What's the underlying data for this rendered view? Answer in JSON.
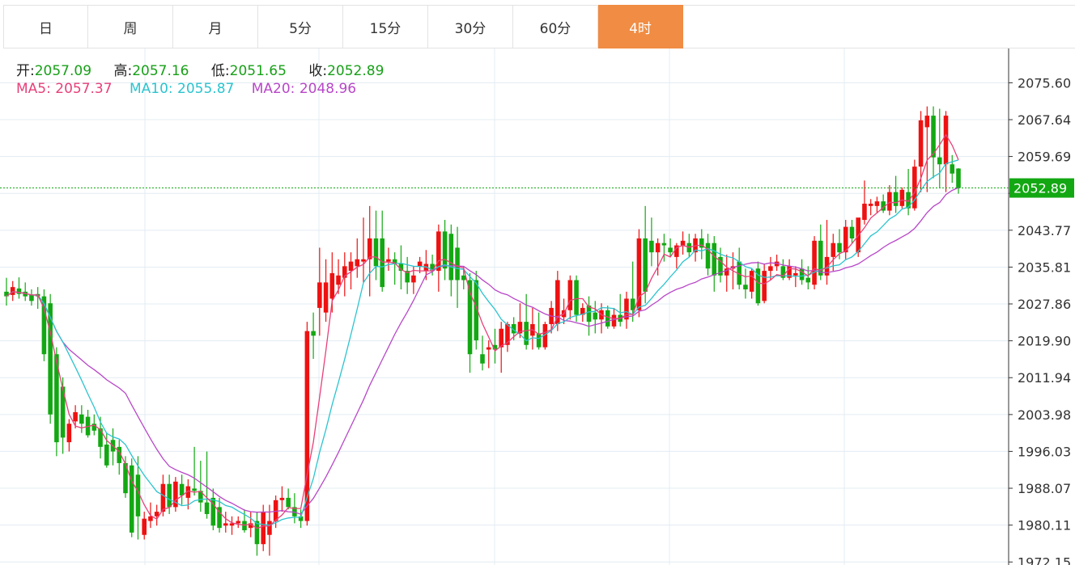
{
  "tabs": [
    {
      "label": "日",
      "active": false
    },
    {
      "label": "周",
      "active": false
    },
    {
      "label": "月",
      "active": false
    },
    {
      "label": "5分",
      "active": false
    },
    {
      "label": "15分",
      "active": false
    },
    {
      "label": "30分",
      "active": false
    },
    {
      "label": "60分",
      "active": false
    },
    {
      "label": "4时",
      "active": true
    }
  ],
  "ohlc": {
    "open_label": "开:",
    "open": "2057.09",
    "high_label": "高:",
    "high": "2057.16",
    "low_label": "低:",
    "low": "2051.65",
    "close_label": "收:",
    "close": "2052.89"
  },
  "ma": {
    "ma5_label": "MA5:",
    "ma5": "2057.37",
    "ma10_label": "MA10:",
    "ma10": "2055.87",
    "ma20_label": "MA20:",
    "ma20": "2048.96"
  },
  "colors": {
    "up": "#ee1111",
    "down": "#13a813",
    "ma5": "#e8407a",
    "ma10": "#2cc4cf",
    "ma20": "#b847c8",
    "tab_active": "#f08c43",
    "price_tag": "#13a813",
    "grid": "#e3ecf3"
  },
  "chart_data": {
    "type": "candlestick",
    "y_ticks": [
      2075.6,
      2067.64,
      2059.69,
      2051.73,
      2043.77,
      2035.81,
      2027.86,
      2019.9,
      2011.94,
      2003.98,
      1996.03,
      1988.07,
      1980.11,
      1972.15
    ],
    "y_tick_labels": [
      "2075.60",
      "2067.64",
      "2059.69",
      "",
      "2043.77",
      "2035.81",
      "2027.86",
      "2019.90",
      "2011.94",
      "2003.98",
      "1996.03",
      "1988.07",
      "1980.11",
      "1972.15"
    ],
    "ylim": [
      1971.5,
      2083.0
    ],
    "current_price": 2052.89,
    "current_price_label": "2052.89",
    "candles": [
      {
        "o": 2030.5,
        "h": 2033.5,
        "l": 2027.5,
        "c": 2029.5
      },
      {
        "o": 2029.8,
        "h": 2032.8,
        "l": 2028.5,
        "c": 2031.5
      },
      {
        "o": 2031.2,
        "h": 2033.6,
        "l": 2029.0,
        "c": 2030.0
      },
      {
        "o": 2030.5,
        "h": 2032.5,
        "l": 2028.5,
        "c": 2029.5
      },
      {
        "o": 2029.8,
        "h": 2031.0,
        "l": 2027.5,
        "c": 2028.5
      },
      {
        "o": 2030.0,
        "h": 2031.5,
        "l": 2026.8,
        "c": 2029.5
      },
      {
        "o": 2029.5,
        "h": 2031.0,
        "l": 2015.5,
        "c": 2017.0
      },
      {
        "o": 2028.0,
        "h": 2030.0,
        "l": 2002.0,
        "c": 2004.0
      },
      {
        "o": 2017.0,
        "h": 2018.5,
        "l": 1995.0,
        "c": 1998.0
      },
      {
        "o": 2010.0,
        "h": 2012.0,
        "l": 1995.5,
        "c": 1999.0
      },
      {
        "o": 1998.0,
        "h": 2003.0,
        "l": 1996.0,
        "c": 2002.0
      },
      {
        "o": 2002.5,
        "h": 2006.0,
        "l": 2001.0,
        "c": 2004.5
      },
      {
        "o": 2004.0,
        "h": 2006.0,
        "l": 2000.0,
        "c": 2002.0
      },
      {
        "o": 2003.5,
        "h": 2005.0,
        "l": 1999.0,
        "c": 1999.5
      },
      {
        "o": 2002.0,
        "h": 2004.0,
        "l": 1999.5,
        "c": 2000.5
      },
      {
        "o": 2001.0,
        "h": 2003.5,
        "l": 1994.5,
        "c": 1997.0
      },
      {
        "o": 1997.5,
        "h": 2000.0,
        "l": 1992.5,
        "c": 1993.0
      },
      {
        "o": 1998.5,
        "h": 2001.0,
        "l": 1993.0,
        "c": 1996.0
      },
      {
        "o": 1997.0,
        "h": 1998.5,
        "l": 1991.0,
        "c": 1993.5
      },
      {
        "o": 1993.5,
        "h": 1995.0,
        "l": 1986.0,
        "c": 1987.0
      },
      {
        "o": 1993.0,
        "h": 1994.5,
        "l": 1977.5,
        "c": 1978.5
      },
      {
        "o": 1991.0,
        "h": 1995.0,
        "l": 1977.0,
        "c": 1982.0
      },
      {
        "o": 1978.0,
        "h": 1983.0,
        "l": 1977.0,
        "c": 1981.5
      },
      {
        "o": 1981.0,
        "h": 1985.0,
        "l": 1979.5,
        "c": 1982.0
      },
      {
        "o": 1982.0,
        "h": 1984.5,
        "l": 1980.0,
        "c": 1983.0
      },
      {
        "o": 1983.0,
        "h": 1991.0,
        "l": 1982.0,
        "c": 1989.0
      },
      {
        "o": 1989.0,
        "h": 1991.0,
        "l": 1982.5,
        "c": 1984.0
      },
      {
        "o": 1984.0,
        "h": 1990.5,
        "l": 1983.0,
        "c": 1989.5
      },
      {
        "o": 1989.0,
        "h": 1991.0,
        "l": 1984.5,
        "c": 1986.5
      },
      {
        "o": 1986.0,
        "h": 1990.0,
        "l": 1983.5,
        "c": 1988.5
      },
      {
        "o": 1988.0,
        "h": 1997.0,
        "l": 1986.5,
        "c": 1987.5
      },
      {
        "o": 1987.5,
        "h": 1994.0,
        "l": 1983.0,
        "c": 1985.0
      },
      {
        "o": 1985.0,
        "h": 1996.0,
        "l": 1981.5,
        "c": 1982.5
      },
      {
        "o": 1986.0,
        "h": 1988.0,
        "l": 1979.0,
        "c": 1980.0
      },
      {
        "o": 1984.0,
        "h": 1986.0,
        "l": 1978.5,
        "c": 1979.5
      },
      {
        "o": 1980.0,
        "h": 1983.0,
        "l": 1978.5,
        "c": 1980.5
      },
      {
        "o": 1980.0,
        "h": 1982.0,
        "l": 1978.0,
        "c": 1980.5
      },
      {
        "o": 1980.5,
        "h": 1982.0,
        "l": 1979.5,
        "c": 1981.0
      },
      {
        "o": 1981.0,
        "h": 1983.5,
        "l": 1978.5,
        "c": 1979.0
      },
      {
        "o": 1979.5,
        "h": 1983.0,
        "l": 1977.5,
        "c": 1980.5
      },
      {
        "o": 1981.0,
        "h": 1983.0,
        "l": 1973.5,
        "c": 1976.0
      },
      {
        "o": 1976.0,
        "h": 1984.5,
        "l": 1974.5,
        "c": 1983.0
      },
      {
        "o": 1978.0,
        "h": 1984.5,
        "l": 1973.5,
        "c": 1981.0
      },
      {
        "o": 1981.0,
        "h": 1986.5,
        "l": 1979.5,
        "c": 1985.5
      },
      {
        "o": 1985.5,
        "h": 1988.5,
        "l": 1983.0,
        "c": 1986.0
      },
      {
        "o": 1986.0,
        "h": 1988.0,
        "l": 1983.5,
        "c": 1984.0
      },
      {
        "o": 1984.0,
        "h": 1987.0,
        "l": 1980.5,
        "c": 1982.0
      },
      {
        "o": 1982.0,
        "h": 1983.5,
        "l": 1979.5,
        "c": 1981.0
      },
      {
        "o": 1981.0,
        "h": 2024.0,
        "l": 1980.0,
        "c": 2022.0
      },
      {
        "o": 2022.0,
        "h": 2026.0,
        "l": 2016.0,
        "c": 2021.0
      },
      {
        "o": 2027.0,
        "h": 2040.0,
        "l": 2021.0,
        "c": 2032.5
      },
      {
        "o": 2026.0,
        "h": 2037.5,
        "l": 2024.0,
        "c": 2032.5
      },
      {
        "o": 2029.0,
        "h": 2039.0,
        "l": 2026.0,
        "c": 2034.5
      },
      {
        "o": 2032.0,
        "h": 2037.5,
        "l": 2030.0,
        "c": 2034.0
      },
      {
        "o": 2033.5,
        "h": 2039.0,
        "l": 2029.5,
        "c": 2036.0
      },
      {
        "o": 2035.0,
        "h": 2039.0,
        "l": 2031.0,
        "c": 2037.0
      },
      {
        "o": 2036.0,
        "h": 2042.0,
        "l": 2033.5,
        "c": 2037.5
      },
      {
        "o": 2037.0,
        "h": 2046.5,
        "l": 2032.5,
        "c": 2037.5
      },
      {
        "o": 2037.5,
        "h": 2049.0,
        "l": 2029.5,
        "c": 2042.0
      },
      {
        "o": 2042.0,
        "h": 2048.0,
        "l": 2033.0,
        "c": 2036.0
      },
      {
        "o": 2042.0,
        "h": 2048.0,
        "l": 2030.5,
        "c": 2031.5
      },
      {
        "o": 2037.0,
        "h": 2040.0,
        "l": 2035.0,
        "c": 2037.5
      },
      {
        "o": 2037.5,
        "h": 2039.0,
        "l": 2032.0,
        "c": 2036.5
      },
      {
        "o": 2036.5,
        "h": 2040.5,
        "l": 2031.0,
        "c": 2035.0
      },
      {
        "o": 2035.0,
        "h": 2038.0,
        "l": 2030.0,
        "c": 2032.5
      },
      {
        "o": 2032.5,
        "h": 2036.0,
        "l": 2030.0,
        "c": 2034.0
      },
      {
        "o": 2036.0,
        "h": 2038.0,
        "l": 2034.5,
        "c": 2037.0
      },
      {
        "o": 2035.0,
        "h": 2039.5,
        "l": 2033.0,
        "c": 2036.5
      },
      {
        "o": 2036.5,
        "h": 2038.5,
        "l": 2034.0,
        "c": 2035.0
      },
      {
        "o": 2035.0,
        "h": 2045.0,
        "l": 2030.5,
        "c": 2043.5
      },
      {
        "o": 2043.5,
        "h": 2046.0,
        "l": 2033.0,
        "c": 2035.5
      },
      {
        "o": 2043.0,
        "h": 2045.0,
        "l": 2029.5,
        "c": 2033.0
      },
      {
        "o": 2040.0,
        "h": 2044.5,
        "l": 2027.0,
        "c": 2033.0
      },
      {
        "o": 2034.0,
        "h": 2036.0,
        "l": 2031.0,
        "c": 2033.0
      },
      {
        "o": 2033.0,
        "h": 2034.5,
        "l": 2013.0,
        "c": 2017.0
      },
      {
        "o": 2033.0,
        "h": 2035.0,
        "l": 2018.0,
        "c": 2020.0
      },
      {
        "o": 2017.0,
        "h": 2021.0,
        "l": 2013.5,
        "c": 2015.0
      },
      {
        "o": 2018.0,
        "h": 2020.0,
        "l": 2014.0,
        "c": 2018.5
      },
      {
        "o": 2019.0,
        "h": 2022.5,
        "l": 2015.0,
        "c": 2018.0
      },
      {
        "o": 2018.5,
        "h": 2024.0,
        "l": 2013.0,
        "c": 2022.5
      },
      {
        "o": 2019.0,
        "h": 2024.0,
        "l": 2017.5,
        "c": 2023.5
      },
      {
        "o": 2023.5,
        "h": 2025.0,
        "l": 2020.0,
        "c": 2021.5
      },
      {
        "o": 2021.5,
        "h": 2028.0,
        "l": 2020.5,
        "c": 2024.0
      },
      {
        "o": 2024.0,
        "h": 2030.0,
        "l": 2018.0,
        "c": 2019.0
      },
      {
        "o": 2021.0,
        "h": 2027.0,
        "l": 2018.0,
        "c": 2023.5
      },
      {
        "o": 2021.5,
        "h": 2026.0,
        "l": 2018.0,
        "c": 2018.5
      },
      {
        "o": 2018.5,
        "h": 2024.0,
        "l": 2018.0,
        "c": 2023.5
      },
      {
        "o": 2023.5,
        "h": 2028.5,
        "l": 2021.5,
        "c": 2027.0
      },
      {
        "o": 2023.5,
        "h": 2035.0,
        "l": 2022.0,
        "c": 2033.0
      },
      {
        "o": 2025.0,
        "h": 2029.0,
        "l": 2023.5,
        "c": 2026.5
      },
      {
        "o": 2026.5,
        "h": 2034.0,
        "l": 2024.5,
        "c": 2033.0
      },
      {
        "o": 2033.0,
        "h": 2034.0,
        "l": 2024.0,
        "c": 2025.5
      },
      {
        "o": 2025.5,
        "h": 2028.0,
        "l": 2024.0,
        "c": 2027.0
      },
      {
        "o": 2027.5,
        "h": 2029.5,
        "l": 2021.0,
        "c": 2024.0
      },
      {
        "o": 2026.0,
        "h": 2028.5,
        "l": 2021.5,
        "c": 2024.5
      },
      {
        "o": 2024.5,
        "h": 2028.0,
        "l": 2021.5,
        "c": 2026.5
      },
      {
        "o": 2026.5,
        "h": 2027.5,
        "l": 2022.5,
        "c": 2023.0
      },
      {
        "o": 2023.0,
        "h": 2027.0,
        "l": 2022.5,
        "c": 2025.5
      },
      {
        "o": 2025.5,
        "h": 2030.0,
        "l": 2023.0,
        "c": 2024.0
      },
      {
        "o": 2024.5,
        "h": 2030.5,
        "l": 2022.5,
        "c": 2029.0
      },
      {
        "o": 2029.0,
        "h": 2037.0,
        "l": 2024.0,
        "c": 2026.5
      },
      {
        "o": 2026.5,
        "h": 2044.0,
        "l": 2025.0,
        "c": 2042.0
      },
      {
        "o": 2042.0,
        "h": 2049.0,
        "l": 2028.0,
        "c": 2030.5
      },
      {
        "o": 2041.5,
        "h": 2046.5,
        "l": 2036.0,
        "c": 2039.0
      },
      {
        "o": 2039.0,
        "h": 2042.0,
        "l": 2034.0,
        "c": 2041.0
      },
      {
        "o": 2041.0,
        "h": 2043.0,
        "l": 2037.0,
        "c": 2040.5
      },
      {
        "o": 2040.0,
        "h": 2042.0,
        "l": 2038.0,
        "c": 2039.0
      },
      {
        "o": 2038.0,
        "h": 2041.0,
        "l": 2035.5,
        "c": 2040.5
      },
      {
        "o": 2040.5,
        "h": 2043.5,
        "l": 2038.5,
        "c": 2041.5
      },
      {
        "o": 2041.0,
        "h": 2043.0,
        "l": 2038.0,
        "c": 2039.0
      },
      {
        "o": 2039.0,
        "h": 2043.0,
        "l": 2037.0,
        "c": 2042.0
      },
      {
        "o": 2042.0,
        "h": 2044.0,
        "l": 2037.5,
        "c": 2040.0
      },
      {
        "o": 2041.0,
        "h": 2043.0,
        "l": 2034.0,
        "c": 2035.5
      },
      {
        "o": 2041.0,
        "h": 2042.5,
        "l": 2030.5,
        "c": 2034.0
      },
      {
        "o": 2038.0,
        "h": 2040.0,
        "l": 2032.5,
        "c": 2034.0
      },
      {
        "o": 2034.0,
        "h": 2038.5,
        "l": 2030.5,
        "c": 2035.5
      },
      {
        "o": 2035.5,
        "h": 2039.0,
        "l": 2031.0,
        "c": 2036.0
      },
      {
        "o": 2037.0,
        "h": 2040.0,
        "l": 2031.0,
        "c": 2032.0
      },
      {
        "o": 2032.0,
        "h": 2035.5,
        "l": 2029.0,
        "c": 2031.0
      },
      {
        "o": 2030.5,
        "h": 2035.5,
        "l": 2029.0,
        "c": 2035.0
      },
      {
        "o": 2035.5,
        "h": 2037.0,
        "l": 2027.5,
        "c": 2028.0
      },
      {
        "o": 2028.5,
        "h": 2036.5,
        "l": 2028.0,
        "c": 2035.0
      },
      {
        "o": 2035.0,
        "h": 2038.0,
        "l": 2033.0,
        "c": 2036.0
      },
      {
        "o": 2036.0,
        "h": 2038.5,
        "l": 2035.0,
        "c": 2037.0
      },
      {
        "o": 2036.0,
        "h": 2037.5,
        "l": 2033.0,
        "c": 2033.5
      },
      {
        "o": 2033.5,
        "h": 2037.5,
        "l": 2033.0,
        "c": 2036.0
      },
      {
        "o": 2034.0,
        "h": 2036.0,
        "l": 2031.5,
        "c": 2034.5
      },
      {
        "o": 2035.5,
        "h": 2037.5,
        "l": 2032.0,
        "c": 2033.0
      },
      {
        "o": 2033.5,
        "h": 2036.0,
        "l": 2031.0,
        "c": 2032.5
      },
      {
        "o": 2032.0,
        "h": 2042.5,
        "l": 2031.0,
        "c": 2041.5
      },
      {
        "o": 2041.5,
        "h": 2045.0,
        "l": 2033.0,
        "c": 2034.0
      },
      {
        "o": 2034.0,
        "h": 2046.0,
        "l": 2032.0,
        "c": 2038.0
      },
      {
        "o": 2038.0,
        "h": 2043.0,
        "l": 2035.0,
        "c": 2041.0
      },
      {
        "o": 2041.0,
        "h": 2044.0,
        "l": 2037.5,
        "c": 2039.0
      },
      {
        "o": 2039.0,
        "h": 2046.0,
        "l": 2037.5,
        "c": 2044.5
      },
      {
        "o": 2044.5,
        "h": 2046.0,
        "l": 2041.0,
        "c": 2042.0
      },
      {
        "o": 2039.0,
        "h": 2046.0,
        "l": 2038.0,
        "c": 2046.5
      },
      {
        "o": 2046.0,
        "h": 2054.5,
        "l": 2045.0,
        "c": 2049.5
      },
      {
        "o": 2049.0,
        "h": 2050.5,
        "l": 2047.0,
        "c": 2049.5
      },
      {
        "o": 2049.0,
        "h": 2051.0,
        "l": 2047.5,
        "c": 2050.0
      },
      {
        "o": 2050.0,
        "h": 2051.5,
        "l": 2047.5,
        "c": 2048.0
      },
      {
        "o": 2048.0,
        "h": 2053.5,
        "l": 2047.0,
        "c": 2052.0
      },
      {
        "o": 2052.0,
        "h": 2055.5,
        "l": 2047.5,
        "c": 2049.0
      },
      {
        "o": 2049.0,
        "h": 2053.0,
        "l": 2048.5,
        "c": 2052.5
      },
      {
        "o": 2052.0,
        "h": 2057.0,
        "l": 2047.0,
        "c": 2048.5
      },
      {
        "o": 2048.5,
        "h": 2059.0,
        "l": 2048.0,
        "c": 2057.5
      },
      {
        "o": 2057.5,
        "h": 2069.5,
        "l": 2052.0,
        "c": 2067.5
      },
      {
        "o": 2066.0,
        "h": 2070.5,
        "l": 2052.0,
        "c": 2068.5
      },
      {
        "o": 2068.5,
        "h": 2070.5,
        "l": 2055.0,
        "c": 2059.5
      },
      {
        "o": 2059.5,
        "h": 2070.0,
        "l": 2053.0,
        "c": 2058.0
      },
      {
        "o": 2058.0,
        "h": 2069.5,
        "l": 2052.0,
        "c": 2068.5
      },
      {
        "o": 2058.0,
        "h": 2060.0,
        "l": 2054.0,
        "c": 2056.0
      },
      {
        "o": 2057.09,
        "h": 2057.16,
        "l": 2051.65,
        "c": 2052.89
      }
    ]
  }
}
